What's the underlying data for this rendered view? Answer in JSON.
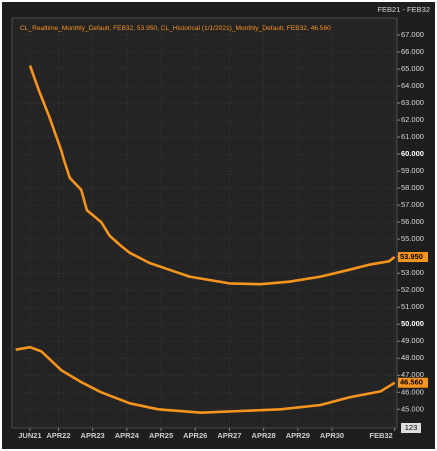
{
  "chart_data": {
    "type": "line",
    "header": "FEB21 - FEB32",
    "legend_text": "CL_Realtime_Monthly_Default, FEB32, 53.950, CL_Historical (1/1/2021)_Monthly_Default, FEB32, 46.560",
    "badge": "123",
    "color": "#f7941d",
    "grid": true,
    "xlim": [
      -1.3,
      133.8
    ],
    "xticks": [
      {
        "value": 5,
        "label": "JUN21"
      },
      {
        "value": 15,
        "label": "APR22"
      },
      {
        "value": 27,
        "label": "APR23"
      },
      {
        "value": 39,
        "label": "APR24"
      },
      {
        "value": 51,
        "label": "APR25"
      },
      {
        "value": 63,
        "label": "APR26"
      },
      {
        "value": 75,
        "label": "APR27"
      },
      {
        "value": 87,
        "label": "APR28"
      },
      {
        "value": 99,
        "label": "APR29"
      },
      {
        "value": 111,
        "label": "APR30"
      },
      {
        "value": 133,
        "label": "FEB32"
      }
    ],
    "ylim": [
      43.9,
      68
    ],
    "yticks": [
      {
        "value": 45,
        "label": "45.000"
      },
      {
        "value": 46,
        "label": "46.000"
      },
      {
        "value": 47,
        "label": "47.000"
      },
      {
        "value": 48,
        "label": "48.000"
      },
      {
        "value": 49,
        "label": "49.000"
      },
      {
        "value": 50,
        "label": "50.000"
      },
      {
        "value": 51,
        "label": "51.000"
      },
      {
        "value": 52,
        "label": "52.000"
      },
      {
        "value": 53,
        "label": "53.000"
      },
      {
        "value": 54,
        "label": "54.000"
      },
      {
        "value": 55,
        "label": "55.000"
      },
      {
        "value": 56,
        "label": "56.000"
      },
      {
        "value": 57,
        "label": "57.000"
      },
      {
        "value": 58,
        "label": "58.000"
      },
      {
        "value": 59,
        "label": "59.000"
      },
      {
        "value": 60,
        "label": "60.000"
      },
      {
        "value": 61,
        "label": "61.000"
      },
      {
        "value": 62,
        "label": "62.000"
      },
      {
        "value": 63,
        "label": "63.000"
      },
      {
        "value": 64,
        "label": "64.000"
      },
      {
        "value": 65,
        "label": "65.000"
      },
      {
        "value": 66,
        "label": "66.000"
      },
      {
        "value": 67,
        "label": "67.000"
      }
    ],
    "series": [
      {
        "name": "CL_Realtime_Monthly_Default",
        "color": "#f7941d",
        "x": [
          5,
          8,
          12,
          16,
          17,
          19,
          23,
          25,
          30,
          33,
          37,
          40,
          47,
          54,
          61,
          68,
          75,
          86,
          96,
          107,
          117,
          124,
          131,
          133
        ],
        "values": [
          65.2,
          63.8,
          62.1,
          60.2,
          59.6,
          58.6,
          57.9,
          56.7,
          56.0,
          55.2,
          54.6,
          54.2,
          53.6,
          53.2,
          52.8,
          52.6,
          52.4,
          52.35,
          52.5,
          52.8,
          53.2,
          53.5,
          53.7,
          53.95
        ],
        "value_labels": [
          null,
          null,
          null,
          null,
          null,
          null,
          null,
          null,
          null,
          null,
          null,
          null,
          null,
          null,
          null,
          null,
          null,
          null,
          null,
          null,
          null,
          null,
          null,
          "53.950"
        ]
      },
      {
        "name": "CL_Historical (1/1/2021)_Monthly_Default",
        "color": "#f7941d",
        "x": [
          0,
          5,
          9,
          16,
          23,
          30,
          40,
          50,
          65,
          79,
          93,
          107,
          117,
          128,
          133
        ],
        "values": [
          48.5,
          48.65,
          48.4,
          47.3,
          46.6,
          46.0,
          45.35,
          45.0,
          44.8,
          44.9,
          45.0,
          45.25,
          45.7,
          46.05,
          46.56
        ],
        "value_labels": [
          null,
          null,
          null,
          null,
          null,
          null,
          null,
          null,
          null,
          null,
          null,
          null,
          null,
          null,
          "46.560"
        ]
      }
    ]
  }
}
